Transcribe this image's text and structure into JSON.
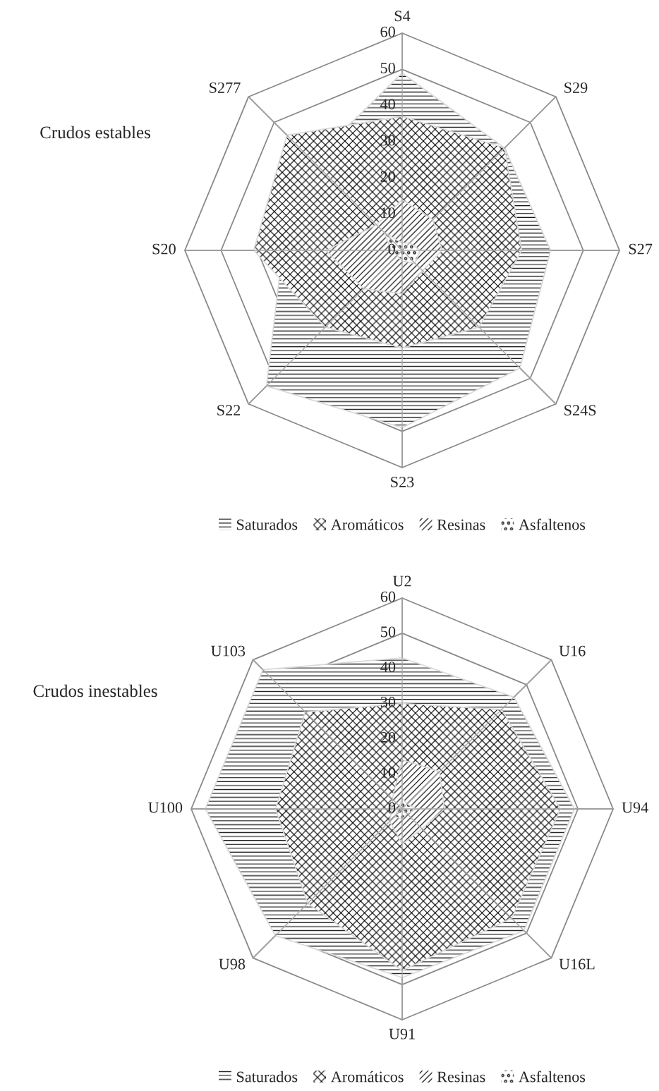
{
  "chart_data": [
    {
      "type": "radar",
      "title": "Crudos estables",
      "categories": [
        "S4",
        "S29",
        "S27",
        "S24S",
        "S23",
        "S22",
        "S20",
        "S277"
      ],
      "ylim": [
        0,
        60
      ],
      "yticks": [
        0,
        10,
        20,
        30,
        40,
        50,
        60
      ],
      "grid": true,
      "legend": "bottom",
      "series": [
        {
          "name": "Saturados",
          "color": "#000000",
          "values": [
            49,
            40,
            41,
            46,
            49,
            53,
            33,
            35
          ]
        },
        {
          "name": "Aromáticos",
          "color": "#000000",
          "values": [
            37,
            40,
            33,
            30,
            27,
            30,
            41,
            45
          ]
        },
        {
          "name": "Resinas",
          "color": "#000000",
          "values": [
            14,
            12,
            11,
            8,
            12,
            15,
            21,
            10
          ]
        },
        {
          "name": "Asfaltenos",
          "color": "#000000",
          "values": [
            2,
            3,
            5,
            5,
            3,
            2,
            3,
            7
          ]
        }
      ]
    },
    {
      "type": "radar",
      "title": "Crudos inestables",
      "categories": [
        "U2",
        "U16",
        "U94",
        "U16L",
        "U91",
        "U98",
        "U100",
        "U103"
      ],
      "ylim": [
        0,
        60
      ],
      "yticks": [
        0,
        10,
        20,
        30,
        40,
        50,
        60
      ],
      "grid": true,
      "legend": "bottom",
      "series": [
        {
          "name": "Saturados",
          "color": "#000000",
          "values": [
            43,
            45,
            49,
            49,
            48,
            51,
            56,
            56
          ]
        },
        {
          "name": "Aromáticos",
          "color": "#000000",
          "values": [
            30,
            40,
            45,
            44,
            46,
            38,
            36,
            39
          ]
        },
        {
          "name": "Resinas",
          "color": "#000000",
          "values": [
            14,
            15,
            12,
            8,
            10,
            5,
            3,
            4
          ]
        },
        {
          "name": "Asfaltenos",
          "color": "#000000",
          "values": [
            3,
            2,
            4,
            2,
            3,
            3,
            1,
            1
          ]
        }
      ]
    }
  ]
}
